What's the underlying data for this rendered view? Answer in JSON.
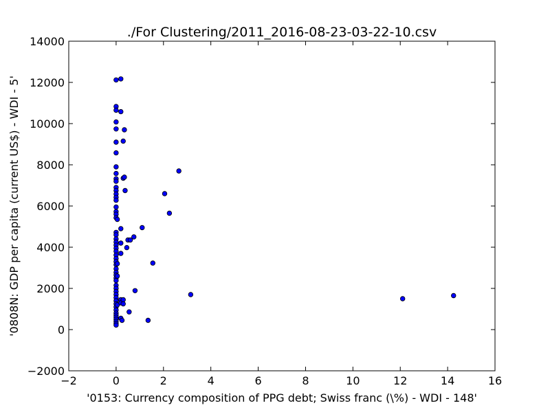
{
  "chart_data": {
    "type": "scatter",
    "title": "./For Clustering/2011_2016-08-23-03-22-10.csv",
    "xlabel": "'0153: Currency composition of PPG debt; Swiss franc  (\\%) - WDI - 148'",
    "ylabel": "'0808N: GDP per capita  (current US$) - WDI - 5'",
    "xlim": [
      -2,
      16
    ],
    "ylim": [
      -2000,
      14000
    ],
    "xticks": [
      -2,
      0,
      2,
      4,
      6,
      8,
      10,
      12,
      14,
      16
    ],
    "yticks": [
      -2000,
      0,
      2000,
      4000,
      6000,
      8000,
      10000,
      12000,
      14000
    ],
    "xtick_labels": [
      "−2",
      "0",
      "2",
      "4",
      "6",
      "8",
      "10",
      "12",
      "14",
      "16"
    ],
    "ytick_labels": [
      "−2000",
      "0",
      "2000",
      "4000",
      "6000",
      "8000",
      "10000",
      "12000",
      "14000"
    ],
    "grid": false,
    "marker_color": "#0000ff",
    "marker_edge": "#000000",
    "points": [
      [
        0,
        12120
      ],
      [
        0,
        10830
      ],
      [
        0,
        10650
      ],
      [
        0,
        10080
      ],
      [
        0,
        9740
      ],
      [
        0,
        9100
      ],
      [
        0,
        8580
      ],
      [
        0,
        7900
      ],
      [
        0,
        7580
      ],
      [
        0,
        7320
      ],
      [
        0,
        7200
      ],
      [
        0,
        6900
      ],
      [
        0,
        6750
      ],
      [
        0,
        6580
      ],
      [
        0,
        6420
      ],
      [
        0,
        6280
      ],
      [
        0,
        5950
      ],
      [
        0,
        5730
      ],
      [
        0,
        5600
      ],
      [
        0,
        5430
      ],
      [
        0,
        4720
      ],
      [
        0,
        4600
      ],
      [
        0,
        4400
      ],
      [
        0,
        4250
      ],
      [
        0,
        4100
      ],
      [
        0,
        3950
      ],
      [
        0,
        3800
      ],
      [
        0,
        3620
      ],
      [
        0,
        3450
      ],
      [
        0,
        3300
      ],
      [
        0,
        3150
      ],
      [
        0,
        2950
      ],
      [
        0,
        2780
      ],
      [
        0,
        2650
      ],
      [
        0,
        2500
      ],
      [
        0,
        2380
      ],
      [
        0,
        2150
      ],
      [
        0,
        2000
      ],
      [
        0,
        1850
      ],
      [
        0,
        1700
      ],
      [
        0,
        1550
      ],
      [
        0,
        1400
      ],
      [
        0,
        1250
      ],
      [
        0,
        1100
      ],
      [
        0,
        950
      ],
      [
        0,
        800
      ],
      [
        0,
        700
      ],
      [
        0,
        600
      ],
      [
        0,
        500
      ],
      [
        0,
        400
      ],
      [
        0,
        300
      ],
      [
        0,
        220
      ],
      [
        0.05,
        5350
      ],
      [
        0.05,
        3200
      ],
      [
        0.05,
        2600
      ],
      [
        0.05,
        1200
      ],
      [
        0.2,
        12170
      ],
      [
        0.2,
        10580
      ],
      [
        0.2,
        4900
      ],
      [
        0.2,
        4200
      ],
      [
        0.2,
        3700
      ],
      [
        0.2,
        1450
      ],
      [
        0.2,
        1300
      ],
      [
        0.2,
        550
      ],
      [
        0.25,
        450
      ],
      [
        0.3,
        9150
      ],
      [
        0.3,
        7350
      ],
      [
        0.35,
        7400
      ],
      [
        0.35,
        9700
      ],
      [
        0.38,
        6750
      ],
      [
        0.3,
        1450
      ],
      [
        0.3,
        1250
      ],
      [
        0.45,
        3980
      ],
      [
        0.5,
        4350
      ],
      [
        0.55,
        860
      ],
      [
        0.6,
        4350
      ],
      [
        0.75,
        4500
      ],
      [
        0.8,
        1890
      ],
      [
        1.1,
        4950
      ],
      [
        1.35,
        450
      ],
      [
        1.55,
        3230
      ],
      [
        2.05,
        6600
      ],
      [
        2.25,
        5650
      ],
      [
        2.65,
        7700
      ],
      [
        3.15,
        1700
      ],
      [
        12.1,
        1500
      ],
      [
        14.25,
        1650
      ]
    ]
  }
}
